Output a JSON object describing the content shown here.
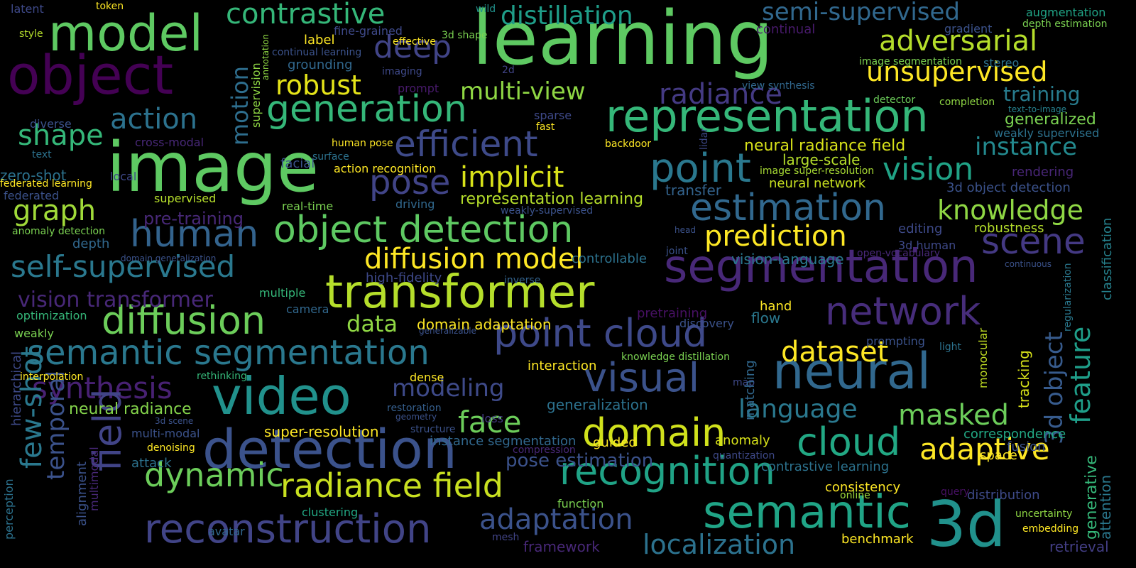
{
  "words": [
    {
      "text": "learning",
      "color": "#5ec962"
    },
    {
      "text": "image",
      "color": "#5ec962"
    },
    {
      "text": "object",
      "color": "#440154"
    },
    {
      "text": "model",
      "color": "#5ec962"
    },
    {
      "text": "detection",
      "color": "#3b528b"
    },
    {
      "text": "video",
      "color": "#21918c"
    },
    {
      "text": "transformer",
      "color": "#b5de2b"
    },
    {
      "text": "segmentation",
      "color": "#482878"
    },
    {
      "text": "neural",
      "color": "#31688e"
    },
    {
      "text": "representation",
      "color": "#35b779"
    },
    {
      "text": "object detection",
      "color": "#5ec962"
    },
    {
      "text": "3d",
      "color": "#21918c"
    },
    {
      "text": "semantic",
      "color": "#20a486"
    },
    {
      "text": "reconstruction",
      "color": "#414487"
    },
    {
      "text": "diffusion",
      "color": "#6ccd5a"
    },
    {
      "text": "generation",
      "color": "#35b779"
    },
    {
      "text": "semantic segmentation",
      "color": "#2a788e"
    },
    {
      "text": "point cloud",
      "color": "#3e4989"
    },
    {
      "text": "estimation",
      "color": "#31688e"
    },
    {
      "text": "network",
      "color": "#472d7b"
    },
    {
      "text": "radiance field",
      "color": "#c8e020"
    },
    {
      "text": "efficient",
      "color": "#3e4a89"
    },
    {
      "text": "point",
      "color": "#2a788e"
    },
    {
      "text": "visual",
      "color": "#3b528b"
    },
    {
      "text": "recognition",
      "color": "#20a386"
    },
    {
      "text": "domain",
      "color": "#d0e11c"
    },
    {
      "text": "diffusion model",
      "color": "#fde725"
    },
    {
      "text": "unsupervised",
      "color": "#fde725"
    },
    {
      "text": "adversarial",
      "color": "#b5de2b"
    },
    {
      "text": "scene",
      "color": "#443983"
    },
    {
      "text": "cloud",
      "color": "#22a884"
    },
    {
      "text": "adaptive",
      "color": "#fde725"
    },
    {
      "text": "human",
      "color": "#33638d"
    },
    {
      "text": "self-supervised",
      "color": "#2a788e"
    },
    {
      "text": "contrastive",
      "color": "#35b779"
    },
    {
      "text": "distillation",
      "color": "#1f9e89"
    },
    {
      "text": "semi-supervised",
      "color": "#31688e"
    },
    {
      "text": "dynamic",
      "color": "#6ccd5a"
    },
    {
      "text": "adaptation",
      "color": "#3b528b"
    },
    {
      "text": "localization",
      "color": "#2c728e"
    },
    {
      "text": "pose",
      "color": "#414487"
    },
    {
      "text": "implicit",
      "color": "#d8e219"
    },
    {
      "text": "prediction",
      "color": "#fde725"
    },
    {
      "text": "dataset",
      "color": "#fde725"
    },
    {
      "text": "masked",
      "color": "#6ccd5a"
    },
    {
      "text": "language",
      "color": "#2a788e"
    },
    {
      "text": "vision",
      "color": "#20a386"
    },
    {
      "text": "knowledge",
      "color": "#8fd744"
    },
    {
      "text": "instance",
      "color": "#23898e"
    },
    {
      "text": "feature",
      "color": "#1f9e89"
    },
    {
      "text": "3d object",
      "color": "#375b8d"
    },
    {
      "text": "radiance",
      "color": "#443a83"
    },
    {
      "text": "multi-view",
      "color": "#8fd744"
    },
    {
      "text": "robust",
      "color": "#e5e419"
    },
    {
      "text": "deep",
      "color": "#414487"
    },
    {
      "text": "action",
      "color": "#2c728e"
    },
    {
      "text": "shape",
      "color": "#35b779"
    },
    {
      "text": "graph",
      "color": "#a0da39"
    },
    {
      "text": "synthesis",
      "color": "#482173"
    },
    {
      "text": "modeling",
      "color": "#3e4a89"
    },
    {
      "text": "face",
      "color": "#6ccd5a"
    },
    {
      "text": "data",
      "color": "#8fd744"
    },
    {
      "text": "field",
      "color": "#414487"
    },
    {
      "text": "few-shot",
      "color": "#2a788e"
    },
    {
      "text": "temporal",
      "color": "#3b528b"
    },
    {
      "text": "motion",
      "color": "#2e6e8e"
    },
    {
      "text": "vision transformer",
      "color": "#482878"
    },
    {
      "text": "pose estimation",
      "color": "#3b528b"
    },
    {
      "text": "neural radiance field",
      "color": "#d8e219"
    },
    {
      "text": "representation learning",
      "color": "#b5de2b"
    },
    {
      "text": "neural radiance",
      "color": "#84d44b"
    },
    {
      "text": "training",
      "color": "#287c8e"
    },
    {
      "text": "generalized",
      "color": "#7ad151"
    },
    {
      "text": "augmentation",
      "color": "#20a486"
    },
    {
      "text": "depth estimation",
      "color": "#7ad151"
    },
    {
      "text": "gradient",
      "color": "#3b528b"
    },
    {
      "text": "continual",
      "color": "#481a6c"
    },
    {
      "text": "stereo",
      "color": "#2c728e"
    },
    {
      "text": "image segmentation",
      "color": "#7ad151"
    },
    {
      "text": "view synthesis",
      "color": "#31688e"
    },
    {
      "text": "detector",
      "color": "#6ccd5a"
    },
    {
      "text": "completion",
      "color": "#8fd744"
    },
    {
      "text": "text-to-image",
      "color": "#26818e"
    },
    {
      "text": "weakly supervised",
      "color": "#2c728e"
    },
    {
      "text": "large-scale",
      "color": "#b5de2b"
    },
    {
      "text": "image super-resolution",
      "color": "#a8db34"
    },
    {
      "text": "neural network",
      "color": "#c8e020"
    },
    {
      "text": "rendering",
      "color": "#482677"
    },
    {
      "text": "3d object detection",
      "color": "#3b528b"
    },
    {
      "text": "transfer",
      "color": "#33638d"
    },
    {
      "text": "editing",
      "color": "#3e4a89"
    },
    {
      "text": "robustness",
      "color": "#b5de2b"
    },
    {
      "text": "3d human",
      "color": "#3e4989"
    },
    {
      "text": "open-vocabulary",
      "color": "#482878"
    },
    {
      "text": "vision-language",
      "color": "#2a788e"
    },
    {
      "text": "continuous",
      "color": "#3b528b"
    },
    {
      "text": "regularization",
      "color": "#2a788e"
    },
    {
      "text": "classification",
      "color": "#26828e"
    },
    {
      "text": "hand",
      "color": "#fde725"
    },
    {
      "text": "flow",
      "color": "#2a788e"
    },
    {
      "text": "discovery",
      "color": "#3b528b"
    },
    {
      "text": "pretraining",
      "color": "#471063"
    },
    {
      "text": "prompting",
      "color": "#3b528b"
    },
    {
      "text": "light",
      "color": "#2c728e"
    },
    {
      "text": "knowledge distillation",
      "color": "#7ad151"
    },
    {
      "text": "monocular",
      "color": "#c2df23"
    },
    {
      "text": "tracking",
      "color": "#d8e219"
    },
    {
      "text": "interaction",
      "color": "#fde725"
    },
    {
      "text": "map",
      "color": "#3e4989"
    },
    {
      "text": "matching",
      "color": "#31688e"
    },
    {
      "text": "anomaly",
      "color": "#d8e219"
    },
    {
      "text": "quantization",
      "color": "#3e4989"
    },
    {
      "text": "contrastive learning",
      "color": "#2c728e"
    },
    {
      "text": "correspondence",
      "color": "#22a884"
    },
    {
      "text": "fusion",
      "color": "#3b528b"
    },
    {
      "text": "space",
      "color": "#fde725"
    },
    {
      "text": "generative",
      "color": "#35b779"
    },
    {
      "text": "attention",
      "color": "#2a788e"
    },
    {
      "text": "consistency",
      "color": "#fde725"
    },
    {
      "text": "query",
      "color": "#471063"
    },
    {
      "text": "distribution",
      "color": "#3e4a89"
    },
    {
      "text": "online",
      "color": "#9dd93b"
    },
    {
      "text": "uncertainty",
      "color": "#8fd744"
    },
    {
      "text": "embedding",
      "color": "#fde725"
    },
    {
      "text": "benchmark",
      "color": "#fde725"
    },
    {
      "text": "retrieval",
      "color": "#433e85"
    },
    {
      "text": "framework",
      "color": "#482878"
    },
    {
      "text": "mesh",
      "color": "#414487"
    },
    {
      "text": "function",
      "color": "#7ad151"
    },
    {
      "text": "guided",
      "color": "#fde725"
    },
    {
      "text": "instance segmentation",
      "color": "#31688e"
    },
    {
      "text": "compression",
      "color": "#482878"
    },
    {
      "text": "loss",
      "color": "#443a83"
    },
    {
      "text": "generalization",
      "color": "#2c728e"
    },
    {
      "text": "restoration",
      "color": "#355f8d"
    },
    {
      "text": "geometry",
      "color": "#3b528b"
    },
    {
      "text": "structure",
      "color": "#3b528b"
    },
    {
      "text": "super-resolution",
      "color": "#fde725"
    },
    {
      "text": "dense",
      "color": "#fde725"
    },
    {
      "text": "domain adaptation",
      "color": "#fde725"
    },
    {
      "text": "generalizable",
      "color": "#3b528b"
    },
    {
      "text": "high-fidelity",
      "color": "#3e4989"
    },
    {
      "text": "inverse",
      "color": "#33638d"
    },
    {
      "text": "controllable",
      "color": "#2c728e"
    },
    {
      "text": "joint",
      "color": "#3b528b"
    },
    {
      "text": "head",
      "color": "#3b528b"
    },
    {
      "text": "driving",
      "color": "#31688e"
    },
    {
      "text": "weakly-supervised",
      "color": "#3b528b"
    },
    {
      "text": "real-time",
      "color": "#7ad151"
    },
    {
      "text": "action recognition",
      "color": "#fde725"
    },
    {
      "text": "human pose",
      "color": "#fde725"
    },
    {
      "text": "surface",
      "color": "#2c728e"
    },
    {
      "text": "facial",
      "color": "#3b528b"
    },
    {
      "text": "fast",
      "color": "#fde725"
    },
    {
      "text": "backdoor",
      "color": "#fde725"
    },
    {
      "text": "lidar",
      "color": "#3e4989"
    },
    {
      "text": "sparse",
      "color": "#3e4989"
    },
    {
      "text": "2d",
      "color": "#414487"
    },
    {
      "text": "prompt",
      "color": "#481a6c"
    },
    {
      "text": "imaging",
      "color": "#3e4989"
    },
    {
      "text": "3d shape",
      "color": "#7ad151"
    },
    {
      "text": "wild",
      "color": "#21918c"
    },
    {
      "text": "fine-grained",
      "color": "#3e4989"
    },
    {
      "text": "effective",
      "color": "#fde725"
    },
    {
      "text": "label",
      "color": "#fde725"
    },
    {
      "text": "continual learning",
      "color": "#3b528b"
    },
    {
      "text": "grounding",
      "color": "#31688e"
    },
    {
      "text": "annotation",
      "color": "#8fd744"
    },
    {
      "text": "supervision",
      "color": "#8fd744"
    },
    {
      "text": "latent",
      "color": "#3e4989"
    },
    {
      "text": "token",
      "color": "#fde725"
    },
    {
      "text": "style",
      "color": "#b5de2b"
    },
    {
      "text": "diverse",
      "color": "#3b528b"
    },
    {
      "text": "text",
      "color": "#2c728e"
    },
    {
      "text": "cross-modal",
      "color": "#482878"
    },
    {
      "text": "zero-shot",
      "color": "#2c728e"
    },
    {
      "text": "local",
      "color": "#3e4989"
    },
    {
      "text": "federated learning",
      "color": "#fde725"
    },
    {
      "text": "federated",
      "color": "#3b528b"
    },
    {
      "text": "supervised",
      "color": "#b5de2b"
    },
    {
      "text": "pre-training",
      "color": "#482878"
    },
    {
      "text": "anomaly detection",
      "color": "#7ad151"
    },
    {
      "text": "depth",
      "color": "#31688e"
    },
    {
      "text": "domain generalization",
      "color": "#3b528b"
    },
    {
      "text": "optimization",
      "color": "#35b779"
    },
    {
      "text": "multiple",
      "color": "#35b779"
    },
    {
      "text": "camera",
      "color": "#31688e"
    },
    {
      "text": "weakly",
      "color": "#7ad151"
    },
    {
      "text": "hierarchical",
      "color": "#3e4a89"
    },
    {
      "text": "interpolation",
      "color": "#fde725"
    },
    {
      "text": "rethinking",
      "color": "#35b779"
    },
    {
      "text": "alignment",
      "color": "#3b528b"
    },
    {
      "text": "multimodal",
      "color": "#482878"
    },
    {
      "text": "multi-modal",
      "color": "#3b528b"
    },
    {
      "text": "3d scene",
      "color": "#3b528b"
    },
    {
      "text": "denoising",
      "color": "#fde725"
    },
    {
      "text": "attack",
      "color": "#2c728e"
    },
    {
      "text": "clustering",
      "color": "#22a884"
    },
    {
      "text": "avatar",
      "color": "#31688e"
    },
    {
      "text": "perception",
      "color": "#2c728e"
    }
  ]
}
